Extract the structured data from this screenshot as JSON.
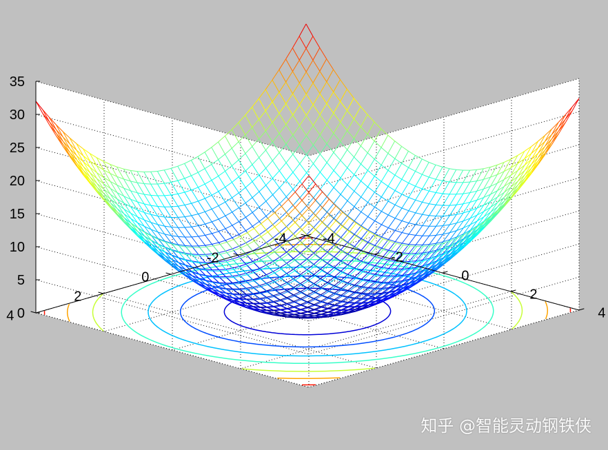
{
  "chart_data": {
    "type": "mesh3d",
    "function": "z = x^2 + y^2",
    "colormap": "jet",
    "x_range": [
      -4,
      4
    ],
    "y_range": [
      -4,
      4
    ],
    "z_range": [
      0,
      35
    ],
    "x_ticks": [
      "-4",
      "-2",
      "0",
      "2",
      "4"
    ],
    "y_ticks": [
      "-4",
      "-2",
      "0",
      "2",
      "4"
    ],
    "z_ticks": [
      "0",
      "5",
      "10",
      "15",
      "20",
      "25",
      "30",
      "35"
    ],
    "contour_on_floor": true,
    "contour_levels": [
      3,
      7,
      11,
      15,
      20,
      25,
      30
    ],
    "grid": true
  },
  "watermark": "知乎 @智能灵动钢铁侠",
  "colors": {
    "background": "#c0c0c0",
    "axes_box": "#ffffff"
  }
}
